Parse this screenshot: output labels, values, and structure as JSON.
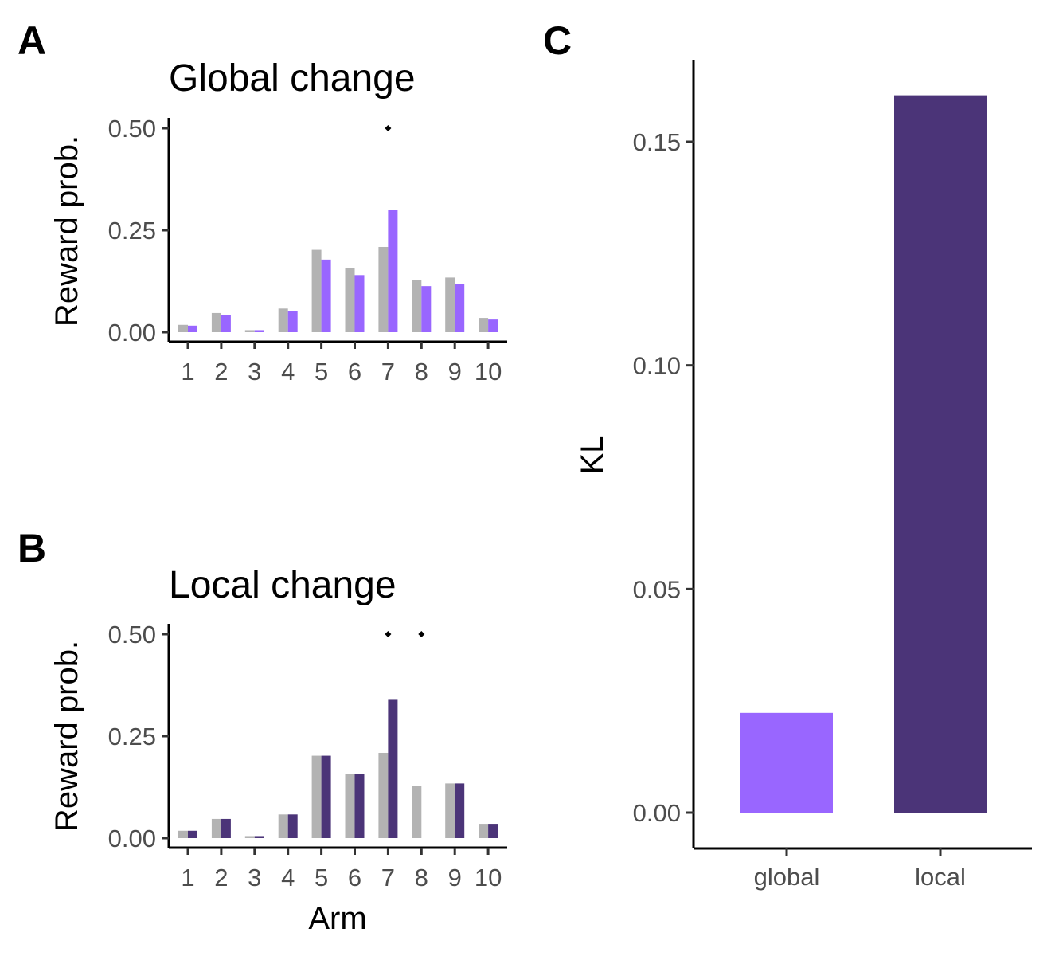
{
  "panels": {
    "a": {
      "letter": "A",
      "title": "Global change",
      "ylabel": "Reward prob.",
      "xlabel": ""
    },
    "b": {
      "letter": "B",
      "title": "Local change",
      "ylabel": "Reward prob.",
      "xlabel": "Arm"
    },
    "c": {
      "letter": "C",
      "ylabel": "KL"
    }
  },
  "colors": {
    "baseline": "#b3b3b3",
    "global": "#9966ff",
    "local": "#4b3478",
    "marker": "#000000"
  },
  "chart_data": [
    {
      "id": "A",
      "type": "bar",
      "title": "Global change",
      "xlabel": "",
      "ylabel": "Reward prob.",
      "ylim": [
        0,
        0.5
      ],
      "yticks": [
        "0.00",
        "0.25",
        "0.50"
      ],
      "categories": [
        "1",
        "2",
        "3",
        "4",
        "5",
        "6",
        "7",
        "8",
        "9",
        "10"
      ],
      "series": [
        {
          "values": [
            0.018,
            0.047,
            0.005,
            0.058,
            0.202,
            0.158,
            0.209,
            0.128,
            0.134,
            0.035
          ]
        },
        {
          "values": [
            0.016,
            0.042,
            0.005,
            0.051,
            0.178,
            0.14,
            0.3,
            0.113,
            0.118,
            0.031
          ]
        }
      ],
      "markers": [
        {
          "category": "7",
          "y": 0.5
        }
      ],
      "grid": false
    },
    {
      "id": "B",
      "type": "bar",
      "title": "Local change",
      "xlabel": "Arm",
      "ylabel": "Reward prob.",
      "ylim": [
        0,
        0.5
      ],
      "yticks": [
        "0.00",
        "0.25",
        "0.50"
      ],
      "categories": [
        "1",
        "2",
        "3",
        "4",
        "5",
        "6",
        "7",
        "8",
        "9",
        "10"
      ],
      "series": [
        {
          "values": [
            0.018,
            0.047,
            0.005,
            0.058,
            0.202,
            0.158,
            0.209,
            0.128,
            0.134,
            0.035
          ]
        },
        {
          "values": [
            0.018,
            0.047,
            0.005,
            0.058,
            0.202,
            0.158,
            0.339,
            0.0,
            0.134,
            0.035
          ]
        }
      ],
      "markers": [
        {
          "category": "7",
          "y": 0.5
        },
        {
          "category": "8",
          "y": 0.5
        }
      ],
      "grid": false
    },
    {
      "id": "C",
      "type": "bar",
      "xlabel": "",
      "ylabel": "KL",
      "ylim": [
        -0.008,
        0.168
      ],
      "yticks": [
        "0.00",
        "0.05",
        "0.10",
        "0.15"
      ],
      "categories": [
        "global",
        "local"
      ],
      "values": [
        0.0223,
        0.1604
      ],
      "grid": false
    }
  ]
}
